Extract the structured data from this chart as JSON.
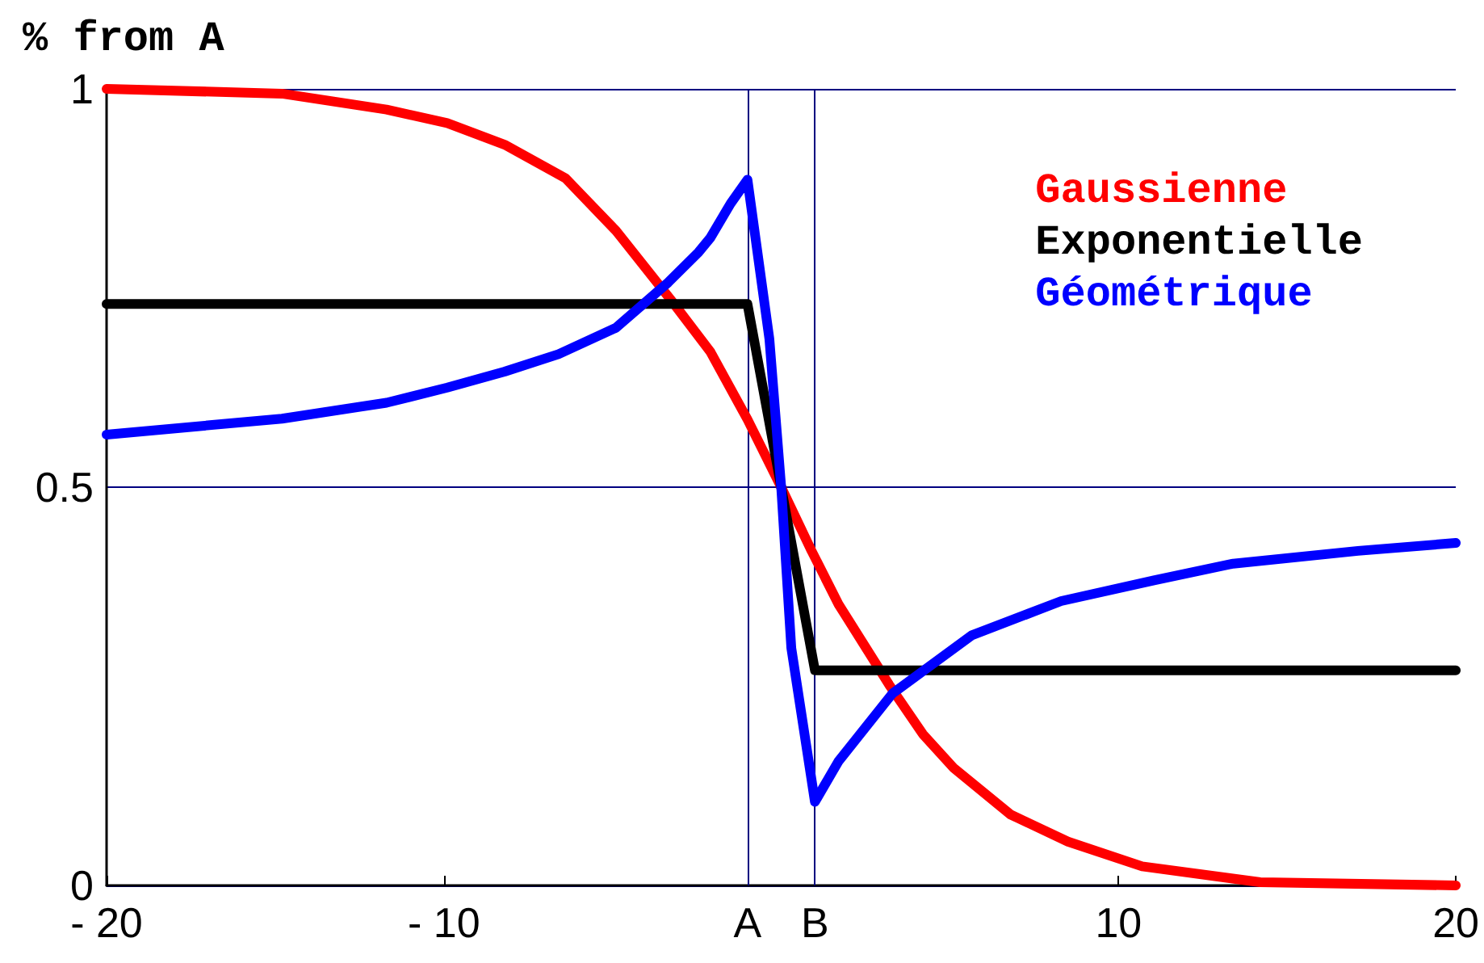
{
  "chart_data": {
    "type": "line",
    "ylabel": "% from A",
    "xlim": [
      -20,
      20
    ],
    "ylim": [
      0,
      1
    ],
    "xticks": [
      {
        "value": -20,
        "label": "- 20"
      },
      {
        "value": -10,
        "label": "- 10"
      },
      {
        "value": -1,
        "label": "A"
      },
      {
        "value": 1,
        "label": "B"
      },
      10,
      20
    ],
    "yticks": [
      0,
      0.5,
      1
    ],
    "grid": "y",
    "legend": "top right",
    "marker": "none",
    "line_style": "solid",
    "ref_lines": [
      {
        "axis": "x",
        "value": -1,
        "color": "#000080"
      },
      {
        "axis": "x",
        "value": 1,
        "color": "#000080"
      }
    ],
    "series": [
      {
        "name": "Gaussienne",
        "color": "#ff0000",
        "x": [
          -20,
          -14.8,
          -11.7,
          -9.9,
          -8.2,
          -6.4,
          -4.9,
          -3.25,
          -2.1,
          -1,
          0,
          0.9,
          1.7,
          3.2,
          4.2,
          5.1,
          6.8,
          8.5,
          10.7,
          14.2,
          20
        ],
        "values": [
          1,
          0.994,
          0.974,
          0.957,
          0.93,
          0.888,
          0.822,
          0.734,
          0.67,
          0.585,
          0.5,
          0.42,
          0.353,
          0.252,
          0.19,
          0.148,
          0.089,
          0.055,
          0.024,
          0.004,
          0
        ]
      },
      {
        "name": "Exponentielle",
        "color": "#000000",
        "x": [
          -20,
          -1,
          1,
          20
        ],
        "values": [
          0.73,
          0.73,
          0.27,
          0.27
        ]
      },
      {
        "name": "Géométrique",
        "color": "#0000ff",
        "x": [
          -20,
          -14.8,
          -11.7,
          -9.9,
          -8.2,
          -6.6,
          -4.9,
          -3.35,
          -2.45,
          -2.1,
          -1.5,
          -1,
          -0.35,
          0,
          0.3,
          1,
          1.7,
          3.3,
          5.65,
          8.3,
          11.05,
          13.4,
          17.1,
          20
        ],
        "values": [
          0.566,
          0.586,
          0.606,
          0.625,
          0.645,
          0.667,
          0.7,
          0.757,
          0.795,
          0.813,
          0.856,
          0.886,
          0.686,
          0.5,
          0.298,
          0.105,
          0.156,
          0.241,
          0.314,
          0.357,
          0.383,
          0.404,
          0.42,
          0.43
        ]
      }
    ]
  }
}
